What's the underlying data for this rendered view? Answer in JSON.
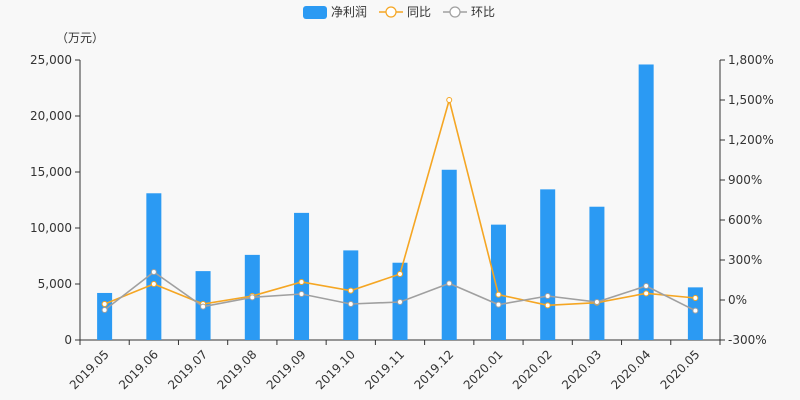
{
  "chart_data": {
    "type": "bar",
    "unit_label": "（万元）",
    "categories": [
      "2019.05",
      "2019.06",
      "2019.07",
      "2019.08",
      "2019.09",
      "2019.10",
      "2019.11",
      "2019.12",
      "2020.01",
      "2020.02",
      "2020.03",
      "2020.04",
      "2020.05"
    ],
    "series": [
      {
        "name": "净利润",
        "type": "bar",
        "axis": "left",
        "color": "#2b9af3",
        "values": [
          4200,
          13100,
          6150,
          7600,
          11350,
          8000,
          6900,
          15200,
          10300,
          13450,
          11900,
          24600,
          4700
        ]
      },
      {
        "name": "同比",
        "type": "line",
        "axis": "right",
        "color": "#f5a623",
        "values": [
          -30,
          120,
          -30,
          30,
          135,
          70,
          195,
          1500,
          40,
          -40,
          -20,
          50,
          15
        ]
      },
      {
        "name": "环比",
        "type": "line",
        "axis": "right",
        "color": "#a0a0a0",
        "values": [
          -75,
          210,
          -50,
          20,
          45,
          -30,
          -15,
          125,
          -35,
          30,
          -15,
          105,
          -80
        ]
      }
    ],
    "y_left": {
      "min": 0,
      "max": 25000,
      "ticks": [
        "0",
        "5,000",
        "10,000",
        "15,000",
        "20,000",
        "25,000"
      ]
    },
    "y_right": {
      "min": -300,
      "max": 1800,
      "ticks": [
        "-300%",
        "0%",
        "300%",
        "600%",
        "900%",
        "1,200%",
        "1,500%",
        "1,800%"
      ]
    },
    "grid": false,
    "legend_position": "top-center"
  }
}
